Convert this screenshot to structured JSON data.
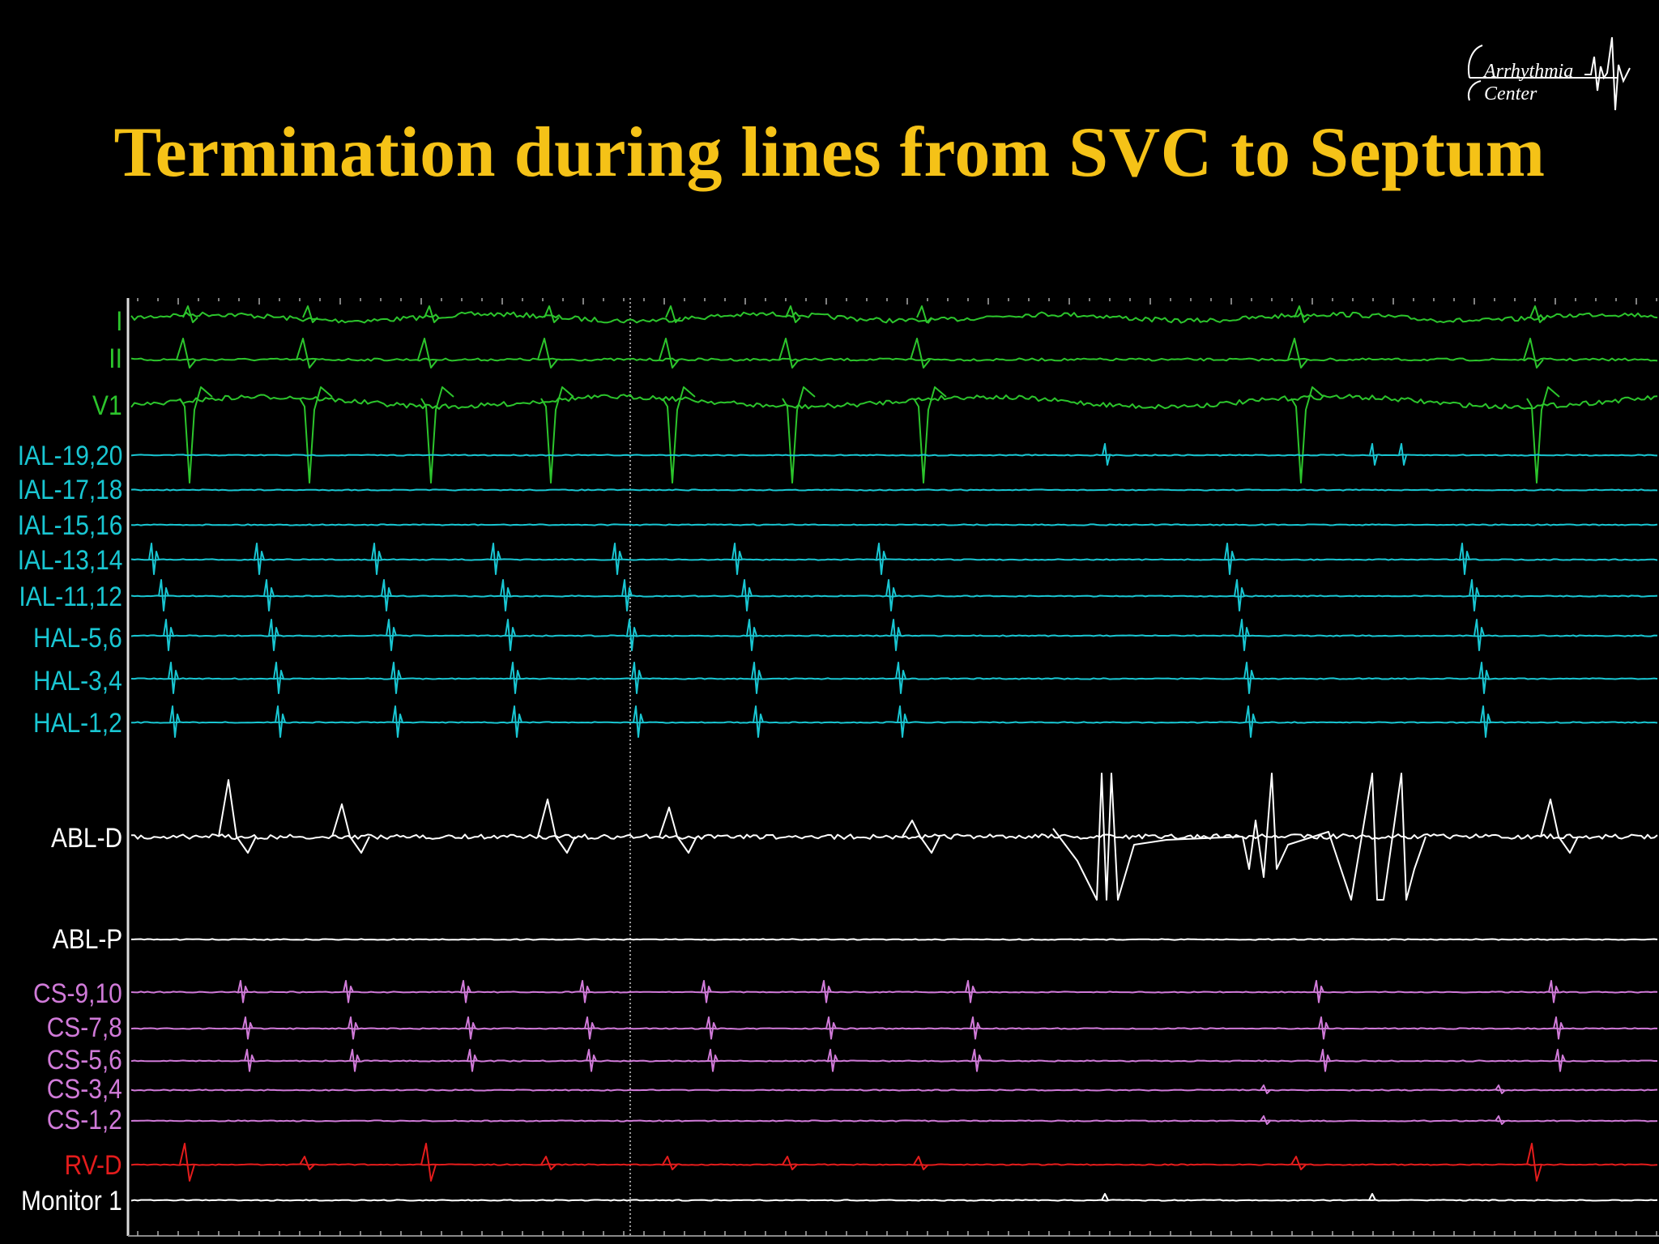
{
  "title": "Termination during lines from SVC to Septum",
  "logo": {
    "line1": "Arrhythmia",
    "line2": "Center",
    "icon": "ecg-waveform-icon"
  },
  "colors": {
    "title": "#f5c217",
    "surface_ecg": "#2cc52c",
    "halo_ial": "#19c6d2",
    "ablation": "#ffffff",
    "cs": "#d07ad8",
    "rv": "#e41c1c",
    "monitor": "#ffffff",
    "background": "#000000"
  },
  "channels": [
    {
      "id": "I",
      "label": "I",
      "group": "surface_ecg"
    },
    {
      "id": "II",
      "label": "II",
      "group": "surface_ecg"
    },
    {
      "id": "V1",
      "label": "V1",
      "group": "surface_ecg"
    },
    {
      "id": "IAL-19,20",
      "label": "IAL-19,20",
      "group": "halo_ial"
    },
    {
      "id": "IAL-17,18",
      "label": "IAL-17,18",
      "group": "halo_ial"
    },
    {
      "id": "IAL-15,16",
      "label": "IAL-15,16",
      "group": "halo_ial"
    },
    {
      "id": "IAL-13,14",
      "label": "IAL-13,14",
      "group": "halo_ial"
    },
    {
      "id": "IAL-11,12",
      "label": "IAL-11,12",
      "group": "halo_ial"
    },
    {
      "id": "HAL-5,6",
      "label": "HAL-5,6",
      "group": "halo_ial"
    },
    {
      "id": "HAL-3,4",
      "label": "HAL-3,4",
      "group": "halo_ial"
    },
    {
      "id": "HAL-1,2",
      "label": "HAL-1,2",
      "group": "halo_ial"
    },
    {
      "id": "ABL-D",
      "label": "ABL-D",
      "group": "ablation"
    },
    {
      "id": "ABL-P",
      "label": "ABL-P",
      "group": "ablation"
    },
    {
      "id": "CS-9,10",
      "label": "CS-9,10",
      "group": "cs"
    },
    {
      "id": "CS-7,8",
      "label": "CS-7,8",
      "group": "cs"
    },
    {
      "id": "CS-5,6",
      "label": "CS-5,6",
      "group": "cs"
    },
    {
      "id": "CS-3,4",
      "label": "CS-3,4",
      "group": "cs"
    },
    {
      "id": "CS-1,2",
      "label": "CS-1,2",
      "group": "cs"
    },
    {
      "id": "RV-D",
      "label": "RV-D",
      "group": "rv"
    },
    {
      "id": "Monitor 1",
      "label": "Monitor 1",
      "group": "monitor"
    }
  ]
}
